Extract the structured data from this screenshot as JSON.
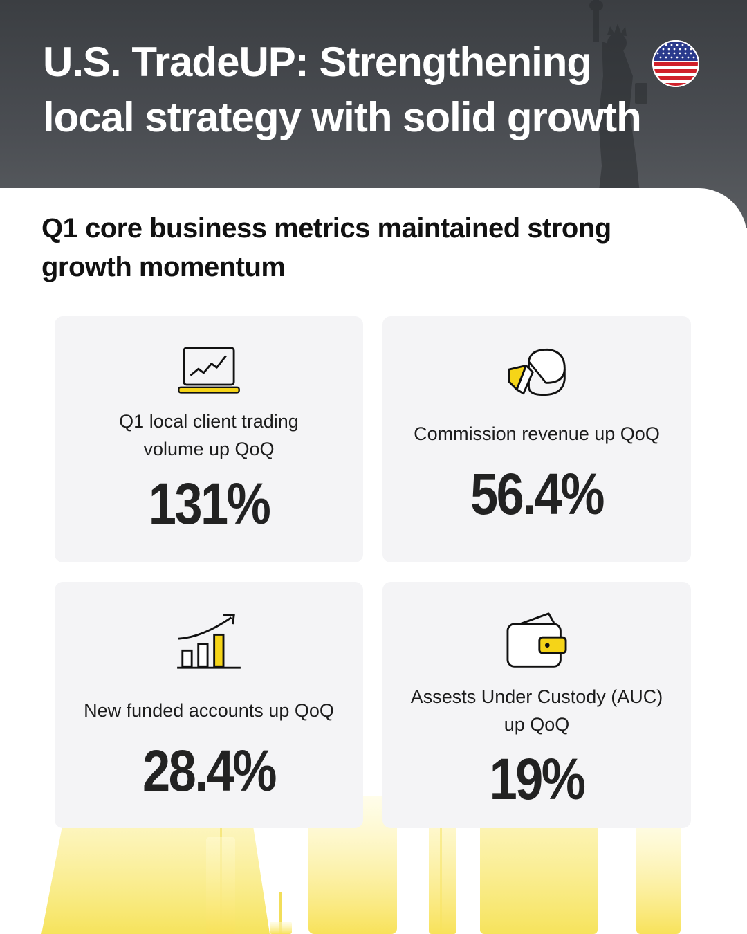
{
  "header": {
    "title_line1": "U.S. TradeUP: Strengthening",
    "title_line2": "local strategy with solid growth",
    "flag_icon": "us-flag-icon"
  },
  "section": {
    "subtitle_line1": "Q1 core business metrics maintained strong",
    "subtitle_line2": "growth momentum"
  },
  "metrics": [
    {
      "icon": "laptop-chart-icon",
      "label_line1": "Q1 local client trading",
      "label_line2": "volume up QoQ",
      "value": "131%"
    },
    {
      "icon": "pie-chart-icon",
      "label_line1": "Commission revenue up QoQ",
      "label_line2": "",
      "value": "56.4%"
    },
    {
      "icon": "bar-growth-icon",
      "label_line1": "New funded accounts up QoQ",
      "label_line2": "",
      "value": "28.4%"
    },
    {
      "icon": "wallet-icon",
      "label_line1": "Assests Under Custody (AUC)",
      "label_line2": "up QoQ",
      "value": "19%"
    }
  ],
  "colors": {
    "accent": "#f5d418",
    "card_bg": "#f4f4f6",
    "header_bg": "#44474c"
  }
}
